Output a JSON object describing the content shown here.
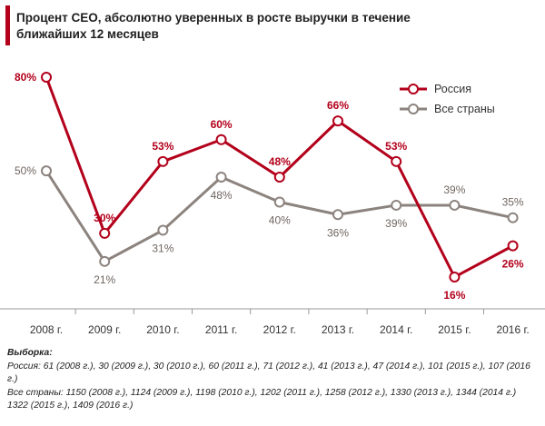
{
  "chart_data": {
    "type": "line",
    "title_lines": [
      "Процент CEO, абсолютно уверенных в росте выручки в течение",
      "ближайших 12 месяцев"
    ],
    "categories": [
      "2008 г.",
      "2009 г.",
      "2010 г.",
      "2011 г.",
      "2012 г.",
      "2013 г.",
      "2014 г.",
      "2015 г.",
      "2016 г."
    ],
    "ylim": [
      0,
      90
    ],
    "grid": false,
    "legend_position": "top-right",
    "series": [
      {
        "name": "Россия",
        "color": "#b3001b",
        "values": [
          80,
          30,
          53,
          60,
          48,
          66,
          53,
          16,
          26
        ],
        "labels": [
          "80%",
          "30%",
          "53%",
          "60%",
          "48%",
          "66%",
          "53%",
          "16%",
          "26%"
        ],
        "label_side": [
          "left",
          "above",
          "above",
          "above",
          "above",
          "above",
          "above",
          "below",
          "below"
        ]
      },
      {
        "name": "Все страны",
        "color": "#8c837e",
        "values": [
          50,
          21,
          31,
          48,
          40,
          36,
          39,
          39,
          35
        ],
        "labels": [
          "50%",
          "21%",
          "31%",
          "48%",
          "40%",
          "36%",
          "39%",
          "39%",
          "35%"
        ],
        "label_side": [
          "left",
          "below",
          "below",
          "below",
          "below",
          "below",
          "below",
          "above",
          "above"
        ]
      }
    ]
  },
  "notes": {
    "heading": "Выборка:",
    "russia": "Россия: 61 (2008 г.), 30 (2009 г.), 30 (2010 г.), 60 (2011 г.), 71 (2012 г.), 41 (2013 г.), 47 (2014 г.), 101 (2015 г.), 107 (2016 г.)",
    "all": "Все страны: 1150 (2008 г.), 1124 (2009 г.), 1198 (2010 г.), 1202 (2011 г.), 1258 (2012 г.), 1330 (2013 г.), 1344 (2014 г.) 1322 (2015 г.), 1409 (2016 г.)"
  }
}
